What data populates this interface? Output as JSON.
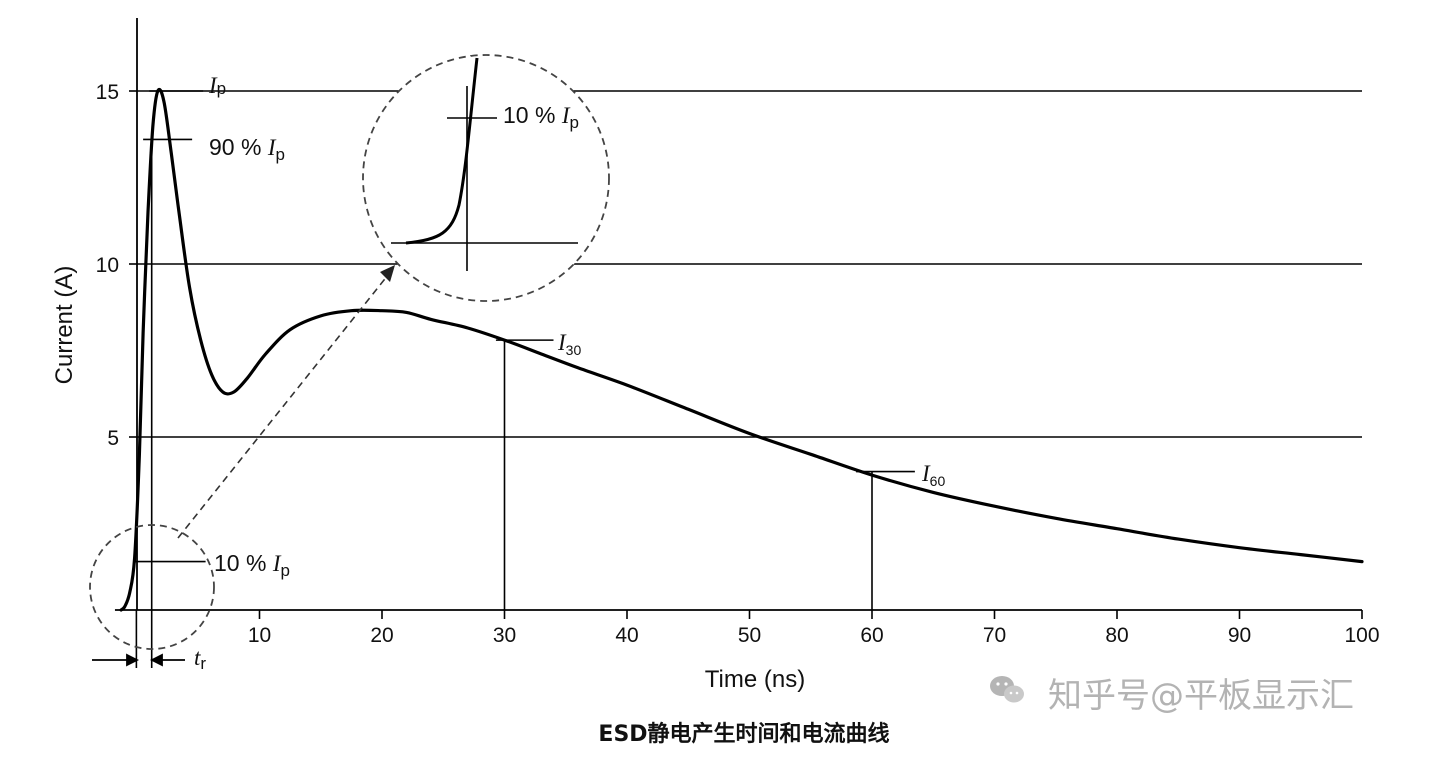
{
  "chart_data": {
    "type": "line",
    "title": "",
    "caption": "ESD静电产生时间和电流曲线",
    "xlabel": "Time (ns)",
    "ylabel": "Current (A)",
    "xlim": [
      -1,
      100
    ],
    "ylim": [
      0,
      17
    ],
    "x_ticks": [
      10,
      20,
      30,
      40,
      50,
      60,
      70,
      80,
      90,
      100
    ],
    "y_ticks": [
      5,
      10,
      15
    ],
    "grid": "horizontal at 5, 10, 15",
    "series": [
      {
        "x": [
          -1.3,
          -1.0,
          -0.6,
          -0.2,
          0.2,
          0.5,
          0.9,
          1.3,
          1.7,
          2.2,
          2.8,
          3.5,
          4.3,
          5.2,
          6.1,
          7.0,
          7.9,
          9.0,
          10.5,
          12.5,
          15.0,
          17.5,
          20.0,
          22.0,
          24.0,
          27.0,
          30.0,
          33.0,
          36.0,
          40.0,
          45.0,
          50.0,
          55.0,
          60.0,
          65.0,
          70.0,
          75.0,
          80.0,
          85.0,
          90.0,
          95.0,
          100.0
        ],
        "y": [
          0.0,
          0.1,
          0.5,
          1.5,
          4.5,
          8.0,
          11.5,
          14.0,
          15.0,
          14.7,
          13.2,
          11.3,
          9.3,
          7.8,
          6.8,
          6.3,
          6.3,
          6.7,
          7.4,
          8.1,
          8.5,
          8.65,
          8.65,
          8.6,
          8.4,
          8.15,
          7.8,
          7.4,
          7.0,
          6.5,
          5.8,
          5.1,
          4.5,
          3.9,
          3.4,
          3.0,
          2.65,
          2.35,
          2.05,
          1.8,
          1.6,
          1.4
        ]
      }
    ],
    "annotations": {
      "ip": {
        "sym": "I",
        "sub": "p",
        "y": 15
      },
      "ninety": {
        "pre": "90 % ",
        "sym": "I",
        "sub": "p",
        "y": 13.6
      },
      "ten": {
        "pre": "10 % ",
        "sym": "I",
        "sub": "p",
        "y": 1.4
      },
      "i30": {
        "sym": "I",
        "sub": "30",
        "x": 30,
        "y": 7.8
      },
      "i60": {
        "sym": "I",
        "sub": "60",
        "x": 60,
        "y": 4.0
      },
      "tr": {
        "sym": "t",
        "sub": "r"
      },
      "inset": {
        "pre": "10 % ",
        "sym": "I",
        "sub": "p"
      }
    }
  },
  "watermark": {
    "text": "知乎号@平板显示汇",
    "icon": "wechat-icon"
  }
}
